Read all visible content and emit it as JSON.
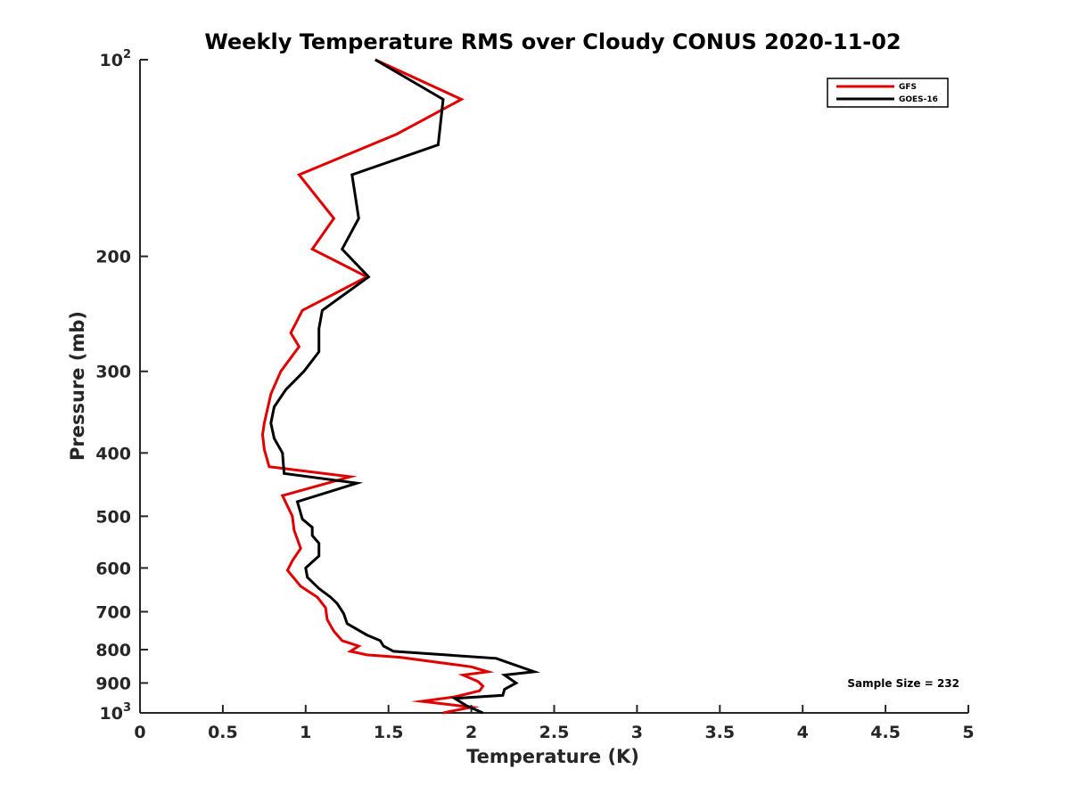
{
  "chart_data": {
    "type": "line",
    "title": "Weekly Temperature RMS over Cloudy CONUS 2020-11-02",
    "xlabel": "Temperature (K)",
    "ylabel": "Pressure (mb)",
    "xlim": [
      0,
      5
    ],
    "ylim": [
      100,
      1000
    ],
    "y_scale": "log",
    "y_reversed": true,
    "x_ticks": [
      0,
      0.5,
      1,
      1.5,
      2,
      2.5,
      3,
      3.5,
      4,
      4.5,
      5
    ],
    "x_tick_labels": [
      "0",
      "0.5",
      "1",
      "1.5",
      "2",
      "2.5",
      "3",
      "3.5",
      "4",
      "4.5",
      "5"
    ],
    "y_ticks": [
      100,
      200,
      300,
      400,
      500,
      600,
      700,
      800,
      900,
      1000
    ],
    "y_tick_labels": [
      "10^2",
      "200",
      "300",
      "400",
      "500",
      "600",
      "700",
      "800",
      "900",
      "10^3"
    ],
    "legend_position": "top-right",
    "grid": false,
    "annotation": "Sample Size = 232",
    "series": [
      {
        "name": "GFS",
        "color": "#e00000",
        "points": [
          [
            1.42,
            100
          ],
          [
            1.94,
            115
          ],
          [
            1.55,
            130
          ],
          [
            0.96,
            150
          ],
          [
            1.17,
            175
          ],
          [
            1.04,
            195
          ],
          [
            1.37,
            215
          ],
          [
            0.98,
            242
          ],
          [
            0.91,
            262
          ],
          [
            0.96,
            275
          ],
          [
            0.85,
            300
          ],
          [
            0.79,
            325
          ],
          [
            0.75,
            360
          ],
          [
            0.74,
            375
          ],
          [
            0.75,
            395
          ],
          [
            0.78,
            420
          ],
          [
            1.27,
            435
          ],
          [
            0.86,
            465
          ],
          [
            0.92,
            500
          ],
          [
            0.93,
            525
          ],
          [
            0.97,
            560
          ],
          [
            0.92,
            585
          ],
          [
            0.89,
            605
          ],
          [
            0.97,
            640
          ],
          [
            1.07,
            665
          ],
          [
            1.12,
            690
          ],
          [
            1.13,
            720
          ],
          [
            1.17,
            750
          ],
          [
            1.22,
            775
          ],
          [
            1.32,
            790
          ],
          [
            1.27,
            805
          ],
          [
            1.37,
            815
          ],
          [
            1.57,
            822
          ],
          [
            2.0,
            850
          ],
          [
            2.1,
            865
          ],
          [
            1.95,
            875
          ],
          [
            2.04,
            895
          ],
          [
            2.07,
            910
          ],
          [
            2.05,
            925
          ],
          [
            1.9,
            945
          ],
          [
            1.7,
            960
          ],
          [
            2.0,
            980
          ],
          [
            1.83,
            1000
          ]
        ]
      },
      {
        "name": "GOES-16",
        "color": "#000000",
        "points": [
          [
            1.42,
            100
          ],
          [
            1.83,
            115
          ],
          [
            1.8,
            135
          ],
          [
            1.28,
            150
          ],
          [
            1.32,
            175
          ],
          [
            1.22,
            195
          ],
          [
            1.38,
            215
          ],
          [
            1.1,
            242
          ],
          [
            1.08,
            258
          ],
          [
            1.08,
            280
          ],
          [
            0.99,
            300
          ],
          [
            0.88,
            320
          ],
          [
            0.81,
            340
          ],
          [
            0.79,
            360
          ],
          [
            0.81,
            380
          ],
          [
            0.86,
            400
          ],
          [
            0.87,
            430
          ],
          [
            1.31,
            445
          ],
          [
            0.95,
            475
          ],
          [
            0.98,
            505
          ],
          [
            1.04,
            520
          ],
          [
            1.04,
            535
          ],
          [
            1.08,
            550
          ],
          [
            1.08,
            575
          ],
          [
            1.0,
            600
          ],
          [
            1.01,
            620
          ],
          [
            1.08,
            645
          ],
          [
            1.15,
            665
          ],
          [
            1.19,
            680
          ],
          [
            1.23,
            705
          ],
          [
            1.25,
            730
          ],
          [
            1.37,
            760
          ],
          [
            1.45,
            775
          ],
          [
            1.47,
            790
          ],
          [
            1.53,
            805
          ],
          [
            2.15,
            825
          ],
          [
            2.38,
            865
          ],
          [
            2.2,
            875
          ],
          [
            2.27,
            900
          ],
          [
            2.2,
            920
          ],
          [
            2.19,
            940
          ],
          [
            1.9,
            950
          ],
          [
            1.97,
            975
          ],
          [
            2.07,
            1000
          ]
        ]
      }
    ]
  }
}
